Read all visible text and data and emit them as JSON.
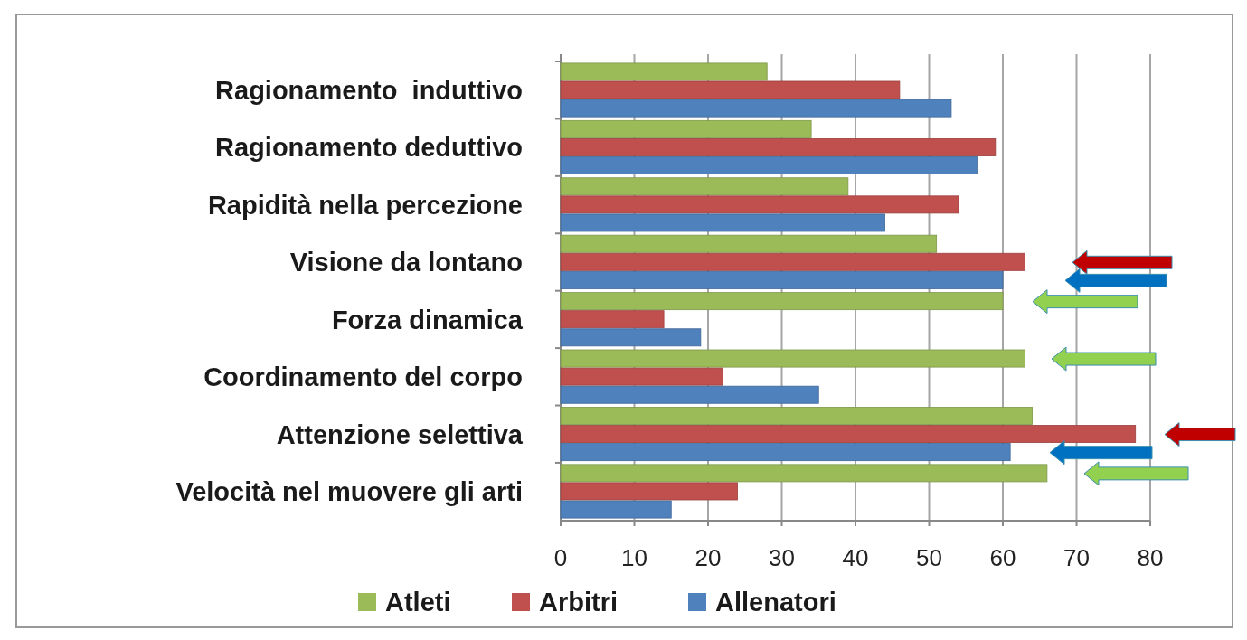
{
  "chart_data": {
    "type": "bar",
    "orientation": "horizontal",
    "categories": [
      "Ragionamento  induttivo",
      "Ragionamento deduttivo",
      "Rapidità nella percezione",
      "Visione da lontano",
      "Forza dinamica",
      "Coordinamento del corpo",
      "Attenzione selettiva",
      "Velocità nel muovere gli arti"
    ],
    "series": [
      {
        "name": "Atleti",
        "color": "#9bbb59",
        "values": [
          28,
          34,
          39,
          51,
          60,
          63,
          64,
          66
        ]
      },
      {
        "name": "Arbitri",
        "color": "#c0504d",
        "values": [
          46,
          59,
          54,
          63,
          14,
          22,
          78,
          24
        ]
      },
      {
        "name": "Allenatori",
        "color": "#4f81bd",
        "values": [
          53,
          56.5,
          44,
          60,
          19,
          35,
          61,
          15
        ]
      }
    ],
    "xlim": [
      0,
      80
    ],
    "xticks": [
      0,
      10,
      20,
      30,
      40,
      50,
      60,
      70,
      80
    ],
    "grid": "x",
    "legend": "bottom"
  }
}
